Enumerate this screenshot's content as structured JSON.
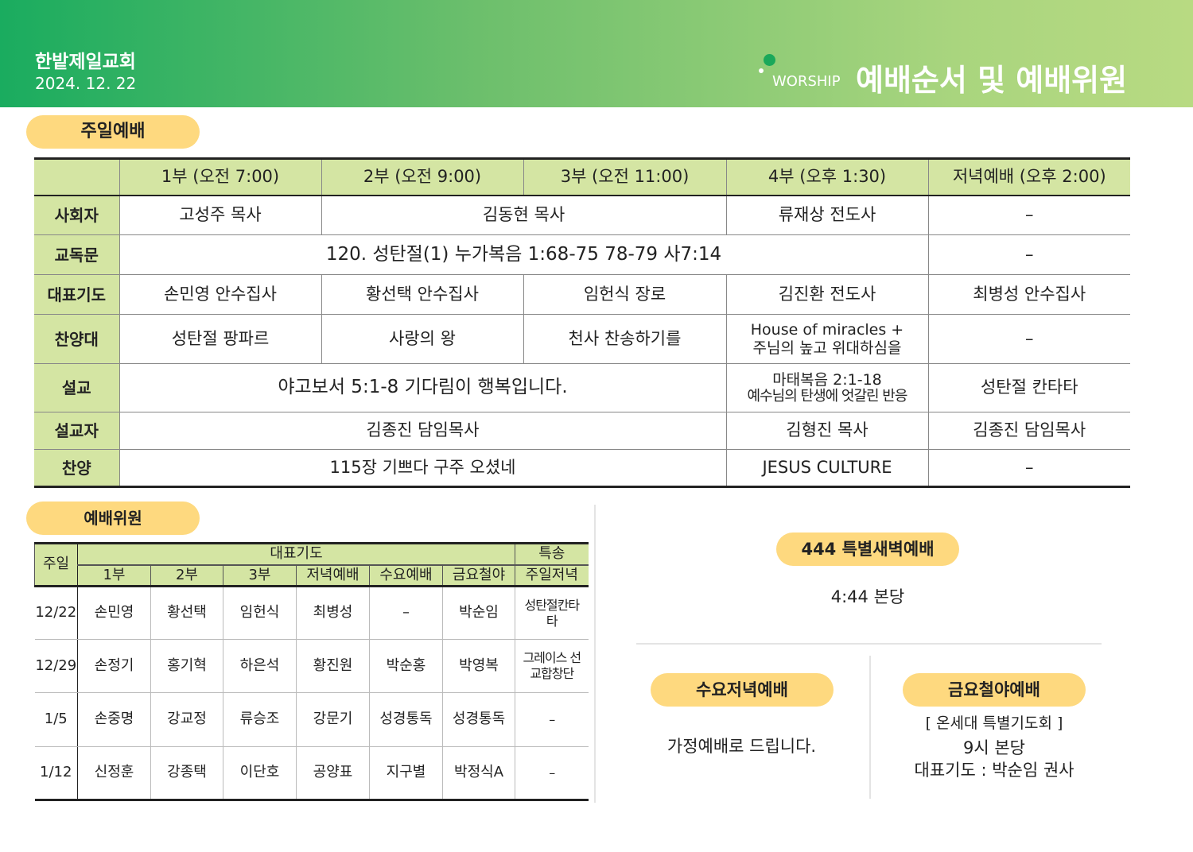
{
  "header": {
    "church": "한밭제일교회",
    "date": "2024. 12. 22",
    "worship_label": "WORSHIP",
    "title": "예배순서 및 예배위원"
  },
  "sunday": {
    "section_title": "주일예배",
    "columns": [
      "1부 (오전 7:00)",
      "2부 (오전 9:00)",
      "3부 (오전 11:00)",
      "4부 (오후 1:30)",
      "저녁예배 (오후 2:00)"
    ],
    "rows": {
      "leader": {
        "label": "사회자",
        "c1": "고성주 목사",
        "c23": "김동현 목사",
        "c4": "류재상 전도사",
        "c5": "–"
      },
      "reading": {
        "label": "교독문",
        "c14": "120. 성탄절(1) 누가복음 1:68-75 78-79 사7:14",
        "c5": "–"
      },
      "prayer": {
        "label": "대표기도",
        "c1": "손민영 안수집사",
        "c2": "황선택 안수집사",
        "c3": "임헌식 장로",
        "c4": "김진환 전도사",
        "c5": "최병성 안수집사"
      },
      "choir": {
        "label": "찬양대",
        "c1": "성탄절 팡파르",
        "c2": "사랑의 왕",
        "c3": "천사 찬송하기를",
        "c4_line1": "House of miracles +",
        "c4_line2": "주님의 높고 위대하심을",
        "c5": "–"
      },
      "sermon": {
        "label": "설교",
        "c13": "야고보서 5:1-8  기다림이 행복입니다.",
        "c4_line1": "마태복음 2:1-18",
        "c4_line2": "예수님의 탄생에 엇갈린 반응",
        "c5": "성탄절 칸타타"
      },
      "preacher": {
        "label": "설교자",
        "c13": "김종진 담임목사",
        "c4": "김형진 목사",
        "c5": "김종진 담임목사"
      },
      "hymn": {
        "label": "찬양",
        "c13": "115장 기쁘다 구주 오셨네",
        "c4": "JESUS CULTURE",
        "c5": "–"
      }
    }
  },
  "members": {
    "section_title": "예배위원",
    "col_sunday": "주일",
    "group_prayer": "대표기도",
    "group_special": "특송",
    "subcols": [
      "1부",
      "2부",
      "3부",
      "저녁예배",
      "수요예배",
      "금요철야",
      "주일저녁"
    ],
    "rows": [
      {
        "date": "12/22",
        "cells": [
          "손민영",
          "황선택",
          "임헌식",
          "최병성",
          "–",
          "박순임",
          "성탄절칸타타"
        ]
      },
      {
        "date": "12/29",
        "cells": [
          "손정기",
          "홍기혁",
          "하은석",
          "황진원",
          "박순홍",
          "박영복",
          "그레이스 선교합창단"
        ]
      },
      {
        "date": "1/5",
        "cells": [
          "손중명",
          "강교정",
          "류승조",
          "강문기",
          "성경통독",
          "성경통독",
          "–"
        ]
      },
      {
        "date": "1/12",
        "cells": [
          "신정훈",
          "강종택",
          "이단호",
          "공양표",
          "지구별",
          "박정식A",
          "–"
        ]
      }
    ]
  },
  "dawn": {
    "title": "444 특별새벽예배",
    "info": "4:44 본당"
  },
  "wednesday": {
    "title": "수요저녁예배",
    "info": "가정예배로 드립니다."
  },
  "friday": {
    "title": "금요철야예배",
    "line1": "[ 온세대 특별기도회 ]",
    "line2": "9시  본당",
    "line3": "대표기도 : 박순임 권사"
  },
  "colors": {
    "header_start": "#1aac5f",
    "header_end": "#b8da82",
    "pill": "#fed97f",
    "table_header": "#d4e5a3"
  }
}
